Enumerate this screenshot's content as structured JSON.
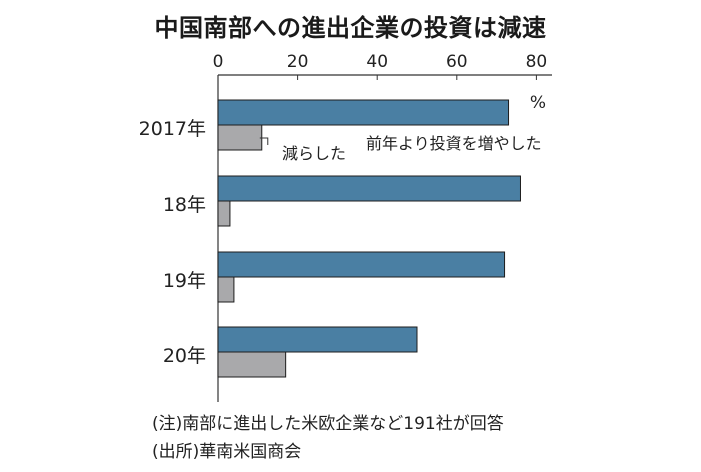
{
  "chart_data": {
    "type": "bar",
    "orientation": "horizontal",
    "title": "中国南部への進出企業の投資は減速",
    "unit_label": "%",
    "categories": [
      "2017年",
      "18年",
      "19年",
      "20年"
    ],
    "series": [
      {
        "name": "前年より投資を増やした",
        "values": [
          73,
          76,
          72,
          50
        ],
        "color": "#4a7fa3"
      },
      {
        "name": "減らした",
        "values": [
          11,
          3,
          4,
          17
        ],
        "color": "#a9a9ab"
      }
    ],
    "xlim": [
      0,
      85
    ],
    "x_ticks": [
      0,
      20,
      40,
      60,
      80
    ],
    "x_tick_labels": [
      "0",
      "20",
      "40",
      "60",
      "80"
    ],
    "axis_position": "top",
    "grid": false,
    "legend_placement": "inline annotations near first group"
  },
  "notes": [
    "(注)南部に進出した米欧企業など191社が回答",
    "(出所)華南米国商会"
  ]
}
